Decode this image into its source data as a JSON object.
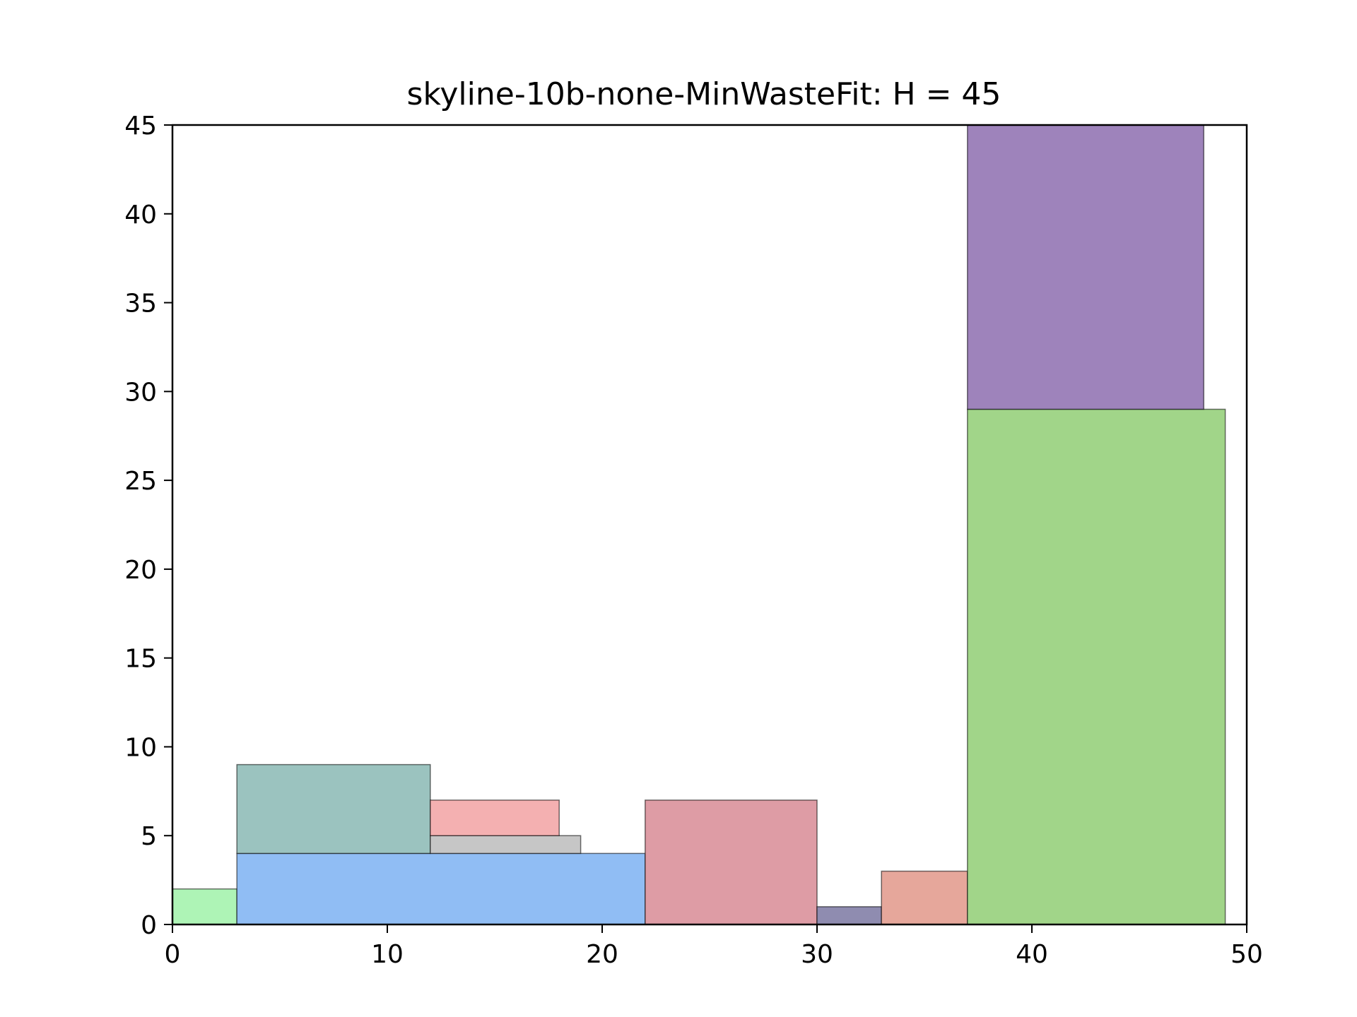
{
  "chart_data": {
    "type": "rectangle-packing",
    "title": "skyline-10b-none-MinWasteFit: H = 45",
    "xlabel": "",
    "ylabel": "",
    "xlim": [
      0,
      50
    ],
    "ylim": [
      0,
      45
    ],
    "xticks": [
      0,
      10,
      20,
      30,
      40,
      50
    ],
    "yticks": [
      0,
      5,
      10,
      15,
      20,
      25,
      30,
      35,
      40,
      45
    ],
    "grid": false,
    "rectangles": [
      {
        "x": 0,
        "y": 0,
        "w": 3,
        "h": 2,
        "color": "#aef4b6"
      },
      {
        "x": 3,
        "y": 0,
        "w": 19,
        "h": 4,
        "color": "#90bdf4"
      },
      {
        "x": 3,
        "y": 4,
        "w": 9,
        "h": 5,
        "color": "#9bc3bf"
      },
      {
        "x": 12,
        "y": 4,
        "w": 7,
        "h": 1,
        "color": "#c6c6c6"
      },
      {
        "x": 12,
        "y": 5,
        "w": 6,
        "h": 2,
        "color": "#f4b0b1"
      },
      {
        "x": 22,
        "y": 0,
        "w": 8,
        "h": 7,
        "color": "#de9ca5"
      },
      {
        "x": 30,
        "y": 0,
        "w": 3,
        "h": 1,
        "color": "#8f8cb0"
      },
      {
        "x": 33,
        "y": 0,
        "w": 4,
        "h": 3,
        "color": "#e6a79b"
      },
      {
        "x": 37,
        "y": 0,
        "w": 12,
        "h": 29,
        "color": "#a1d589"
      },
      {
        "x": 37,
        "y": 29,
        "w": 11,
        "h": 16,
        "color": "#9e83bb"
      }
    ]
  }
}
